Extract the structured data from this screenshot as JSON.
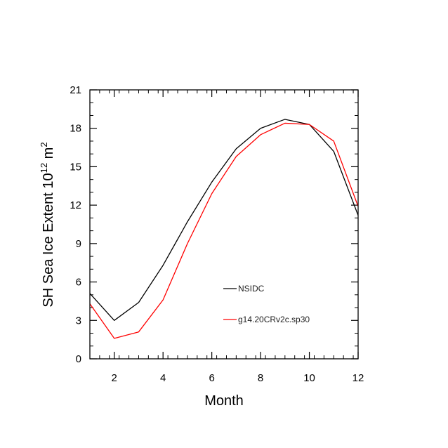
{
  "chart_data": {
    "type": "line",
    "xlabel": "Month",
    "ylabel": "SH Sea Ice Extent 10",
    "ylabel_exp1": "12",
    "ylabel_mid": " m",
    "ylabel_exp2": "2",
    "xlim": [
      1,
      12
    ],
    "ylim": [
      0,
      21
    ],
    "x": [
      1,
      2,
      3,
      4,
      5,
      6,
      7,
      8,
      9,
      10,
      11,
      12
    ],
    "x_ticks": [
      2,
      4,
      6,
      8,
      10,
      12
    ],
    "y_ticks": [
      0,
      3,
      6,
      9,
      12,
      15,
      18,
      21
    ],
    "grid": false,
    "legend_position": "lower-center inside",
    "series": [
      {
        "name": "NSIDC",
        "color": "#000000",
        "values": [
          5.1,
          3.0,
          4.4,
          7.3,
          10.7,
          13.8,
          16.4,
          18.0,
          18.7,
          18.3,
          16.2,
          11.2
        ]
      },
      {
        "name": "g14.20CRv2c.sp30",
        "color": "#ff0000",
        "values": [
          4.3,
          1.6,
          2.1,
          4.6,
          9.0,
          12.9,
          15.8,
          17.5,
          18.4,
          18.3,
          17.0,
          11.9
        ]
      }
    ]
  }
}
